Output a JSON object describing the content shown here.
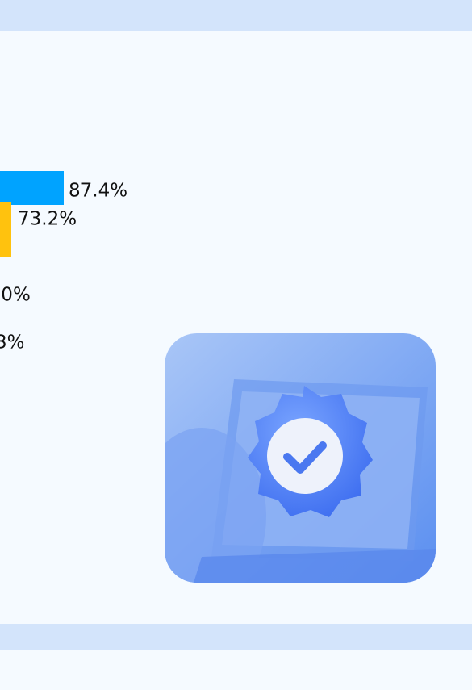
{
  "bars": [
    {
      "label": "87.4%"
    },
    {
      "label": "73.2%"
    },
    {
      "label": ".0%"
    },
    {
      "label": "3%"
    }
  ]
}
